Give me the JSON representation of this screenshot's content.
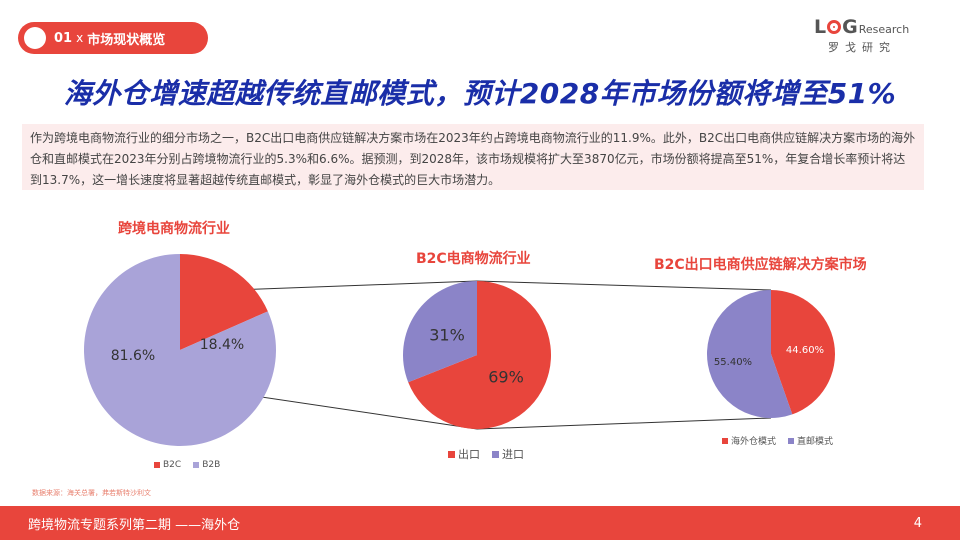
{
  "section": {
    "number": "01",
    "separator": "x",
    "name": "市场现状概览"
  },
  "logo": {
    "L": "L",
    "G": "G",
    "research": "Research",
    "cn": "罗戈研究"
  },
  "headline": "海外仓增速超越传统直邮模式，预计2028年市场份额将增至51%",
  "summary": "作为跨境电商物流行业的细分市场之一，B2C出口电商供应链解决方案市场在2023年约占跨境电商物流行业的11.9%。此外，B2C出口电商供应链解决方案市场的海外仓和直邮模式在2023年分别占跨境物流行业的5.3%和6.6%。据预测，到2028年，该市场规模将扩大至3870亿元，市场份额将提高至51%，年复合增长率预计将达到13.7%，这一增长速度将显著超越传统直邮模式，彰显了海外仓模式的巨大市场潜力。",
  "colors": {
    "red": "#e8453c",
    "purple_light": "#a9a3d8",
    "purple": "#8b84c8",
    "navy": "#1a2ea8"
  },
  "chart_data": [
    {
      "type": "pie",
      "title": "跨境电商物流行业",
      "slices": [
        {
          "name": "B2C",
          "value": 18.4,
          "label": "18.4%"
        },
        {
          "name": "B2B",
          "value": 81.6,
          "label": "81.6%"
        }
      ],
      "legend": "bottom"
    },
    {
      "type": "pie",
      "title": "B2C电商物流行业",
      "slices": [
        {
          "name": "出口",
          "value": 69,
          "label": "69%"
        },
        {
          "name": "进口",
          "value": 31,
          "label": "31%"
        }
      ],
      "legend": "bottom"
    },
    {
      "type": "pie",
      "title": "B2C出口电商供应链解决方案市场",
      "slices": [
        {
          "name": "海外仓模式",
          "value": 44.6,
          "label": "44.60%"
        },
        {
          "name": "直邮模式",
          "value": 55.4,
          "label": "55.40%"
        }
      ],
      "legend": "bottom"
    }
  ],
  "source": "数据来源：海关总署，弗若斯特沙利文",
  "footer": {
    "text": "跨境物流专题系列第二期 ——海外仓",
    "page": "4"
  }
}
